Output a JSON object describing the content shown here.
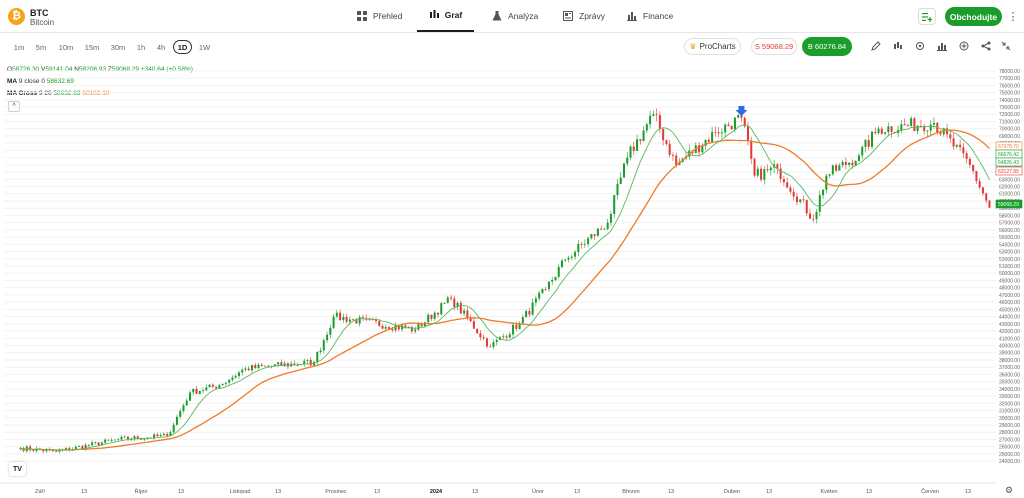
{
  "asset": {
    "symbol": "BTC",
    "name": "Bitcoin",
    "logo_glyph": "₿",
    "logo_color": "#f7a21b"
  },
  "nav": {
    "tabs": [
      {
        "label": "Přehled",
        "icon": "grid-icon"
      },
      {
        "label": "Graf",
        "icon": "candles-icon",
        "active": true
      },
      {
        "label": "Analýza",
        "icon": "flask-icon"
      },
      {
        "label": "Zprávy",
        "icon": "news-icon"
      },
      {
        "label": "Finance",
        "icon": "bar-chart-icon"
      }
    ]
  },
  "header": {
    "trade_label": "Obchodujte",
    "more_glyph": "⋮",
    "accent": "#1b9d2b"
  },
  "toolbar": {
    "timeframes": [
      "1m",
      "5m",
      "10m",
      "15m",
      "30m",
      "1h",
      "4h",
      "1D",
      "1W"
    ],
    "active_timeframe": "1D",
    "procharts_label": "ProCharts",
    "sell_label": "S 59068.29",
    "buy_label": "B 60276.84"
  },
  "legend": {
    "ohlc": {
      "o_label": "O",
      "o": "58726.30",
      "h_label": "V",
      "h": "59141.04",
      "l_label": "N",
      "l": "58206.93",
      "c_label": "Z",
      "c": "59068.29",
      "change": "+340.64 (+0.58%)"
    },
    "ma": {
      "name": "MA",
      "params": "9 close 0",
      "value": "58632.69"
    },
    "ma_cross": {
      "name": "MA Cross",
      "params": "9 26",
      "fast": "58632.69",
      "slow": "60102.10"
    },
    "collapse_glyph": "^"
  },
  "chart_data": {
    "type": "candlestick",
    "y_ticks": [
      24000,
      25000,
      26000,
      27000,
      28000,
      29000,
      30000,
      31000,
      32000,
      33000,
      34000,
      35000,
      36000,
      37000,
      38000,
      39000,
      40000,
      41000,
      42000,
      43000,
      44000,
      45000,
      46000,
      47000,
      48000,
      49000,
      50000,
      51000,
      52000,
      53000,
      54000,
      55000,
      56000,
      57000,
      58000,
      59000,
      60000,
      61000,
      62000,
      63000,
      64000,
      65000,
      66000,
      67000,
      68000,
      69000,
      70000,
      71000,
      72000,
      73000,
      74000,
      75000,
      76000,
      77000,
      78000
    ],
    "ylim": [
      23600,
      78400
    ],
    "x_labels": [
      "Září",
      "13",
      "Říjen",
      "13",
      "Listopad",
      "13",
      "Prosinec",
      "13",
      "2024",
      "13",
      "Únor",
      "13",
      "Březen",
      "13",
      "Duben",
      "13",
      "Květen",
      "13",
      "Červen",
      "13"
    ],
    "price_tags": [
      {
        "label": "67978.70",
        "value": 67978.7,
        "color": "#f07b2a"
      },
      {
        "label": "66676.42",
        "value": 66676.42,
        "color": "#1b9d2b"
      },
      {
        "label": "64826.43",
        "value": 64826.43,
        "color": "#1b9d2b"
      },
      {
        "label": "63127.85",
        "value": 63127.85,
        "color": "#e53935"
      },
      {
        "label": "59068.29",
        "value": 59068.29,
        "color": "#1b9d2b",
        "filled": true
      }
    ],
    "key_closes": [
      {
        "date": "2023-09-01",
        "close": 25800
      },
      {
        "date": "2023-09-12",
        "close": 25300
      },
      {
        "date": "2023-10-01",
        "close": 27000
      },
      {
        "date": "2023-10-16",
        "close": 27500
      },
      {
        "date": "2023-10-23",
        "close": 33500
      },
      {
        "date": "2023-11-01",
        "close": 34500
      },
      {
        "date": "2023-11-09",
        "close": 36800
      },
      {
        "date": "2023-11-30",
        "close": 37700
      },
      {
        "date": "2023-12-06",
        "close": 44000
      },
      {
        "date": "2023-12-31",
        "close": 42200
      },
      {
        "date": "2024-01-11",
        "close": 46500
      },
      {
        "date": "2024-01-23",
        "close": 39800
      },
      {
        "date": "2024-02-01",
        "close": 43100
      },
      {
        "date": "2024-02-09",
        "close": 47800
      },
      {
        "date": "2024-02-15",
        "close": 51900
      },
      {
        "date": "2024-02-28",
        "close": 57000
      },
      {
        "date": "2024-03-05",
        "close": 66000
      },
      {
        "date": "2024-03-13",
        "close": 72000
      },
      {
        "date": "2024-03-20",
        "close": 65000
      },
      {
        "date": "2024-04-01",
        "close": 69500
      },
      {
        "date": "2024-04-09",
        "close": 71500
      },
      {
        "date": "2024-04-13",
        "close": 63500
      },
      {
        "date": "2024-04-20",
        "close": 64500
      },
      {
        "date": "2024-05-01",
        "close": 57500
      },
      {
        "date": "2024-05-05",
        "close": 63500
      },
      {
        "date": "2024-05-15",
        "close": 66300
      },
      {
        "date": "2024-05-21",
        "close": 70000
      },
      {
        "date": "2024-06-07",
        "close": 70800
      },
      {
        "date": "2024-06-18",
        "close": 65000
      },
      {
        "date": "2024-06-24",
        "close": 59068.29
      }
    ],
    "series": [
      {
        "name": "MA 9",
        "color": "#5cb85c"
      },
      {
        "name": "MA 26",
        "color": "#f07b2a"
      }
    ],
    "up_color": "#1b9d2b",
    "down_color": "#e53935",
    "marker": {
      "glyph": "arrow-down",
      "date": "2024-04-09",
      "color": "#2b6de8"
    }
  }
}
